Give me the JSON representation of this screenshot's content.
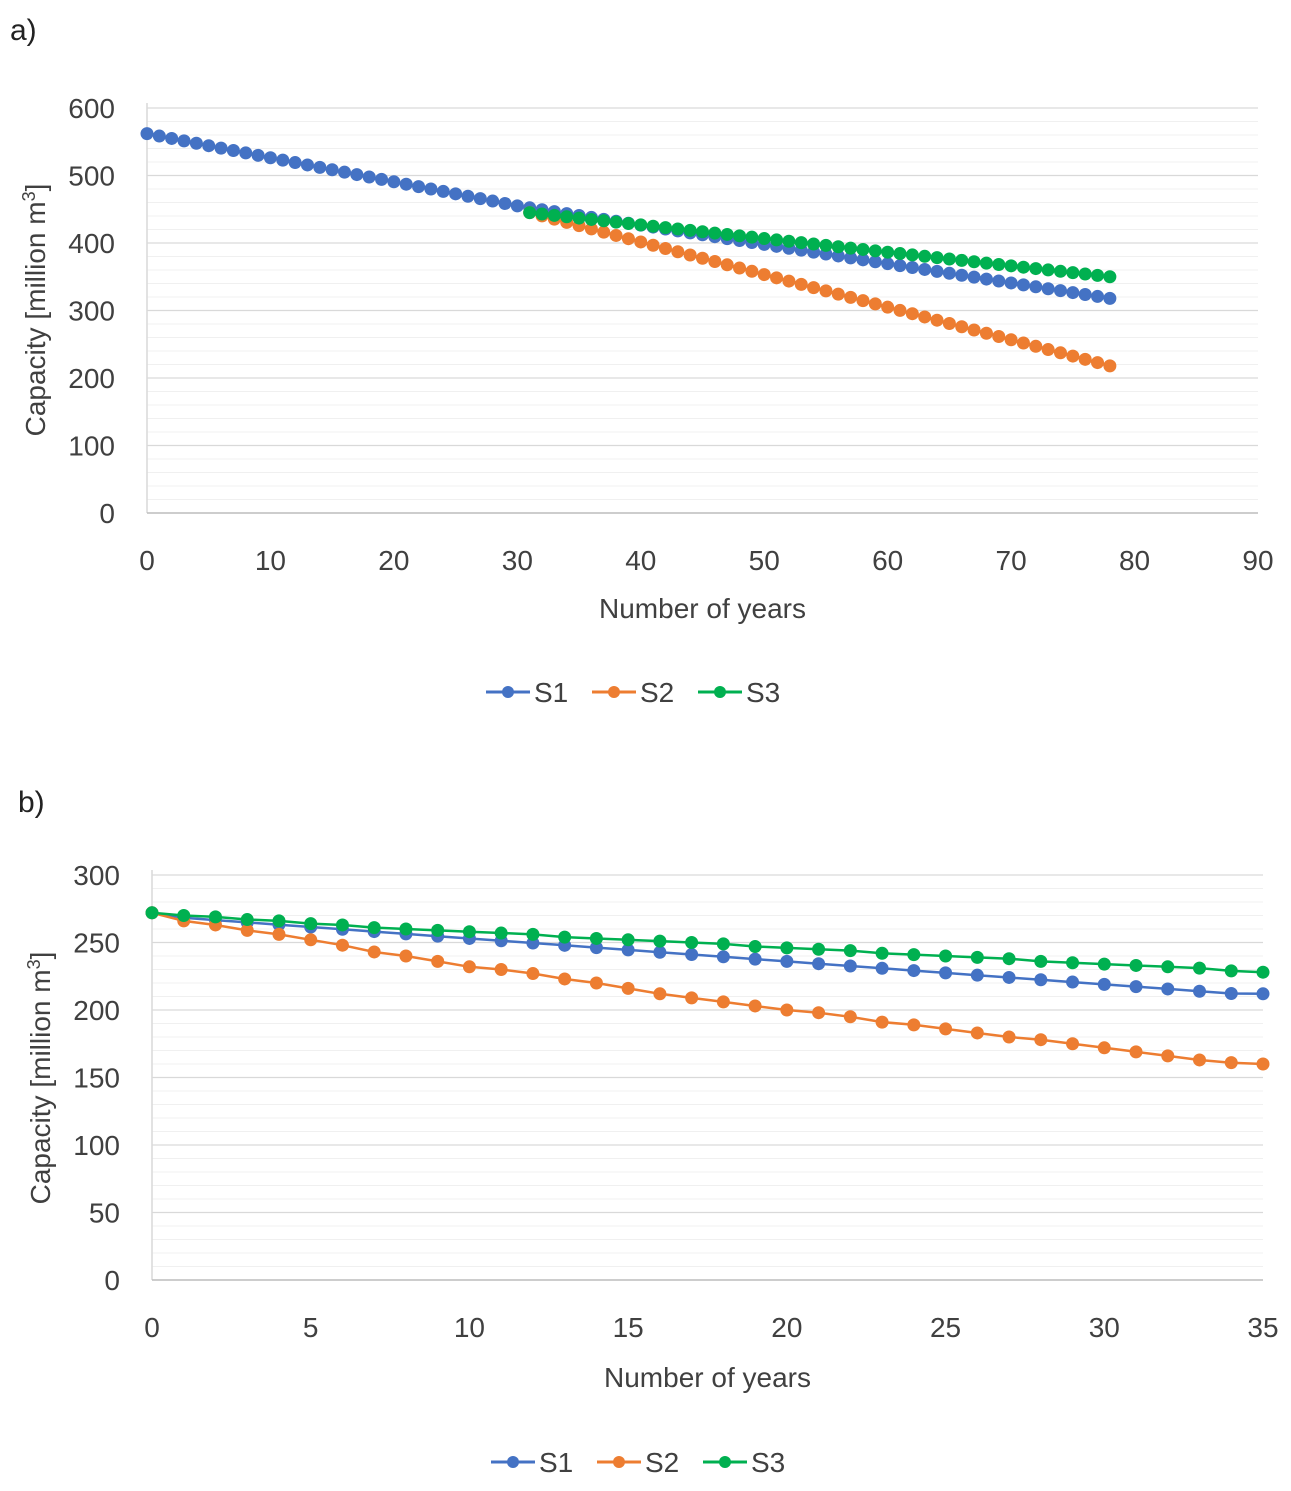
{
  "panels": [
    {
      "label": "a)"
    },
    {
      "label": "b)"
    }
  ],
  "colors": {
    "S1": "#4472C4",
    "S2": "#ED7D31",
    "S3": "#00B050",
    "grid_major": "#d9d9d9",
    "grid_minor": "#f0f0f0"
  },
  "chart_data": [
    {
      "type": "line",
      "title": "",
      "xlabel": "Number of years",
      "ylabel": "Capacity [million m",
      "ylabel_sup": "3",
      "ylabel_end": "]",
      "xlim": [
        0,
        90
      ],
      "ylim": [
        0,
        600
      ],
      "xticks": [
        0,
        10,
        20,
        30,
        40,
        50,
        60,
        70,
        80,
        90
      ],
      "yticks": [
        0,
        100,
        200,
        300,
        400,
        500,
        600
      ],
      "grid": true,
      "legend": "bottom-center",
      "series": [
        {
          "name": "S1",
          "x_start": 0,
          "x_end": 78,
          "y_start": 562,
          "y_end": 318,
          "breakpoint": {
            "x": 30,
            "y": 455
          }
        },
        {
          "name": "S2",
          "x_start": 31,
          "x_end": 78,
          "y_start": 445,
          "y_end": 218
        },
        {
          "name": "S3",
          "x_start": 31,
          "x_end": 78,
          "y_start": 445,
          "y_end": 350
        }
      ]
    },
    {
      "type": "line",
      "title": "",
      "xlabel": "Number of years",
      "ylabel": "Capacity [million m",
      "ylabel_sup": "3",
      "ylabel_end": "]",
      "xlim": [
        0,
        35
      ],
      "ylim": [
        0,
        300
      ],
      "xticks": [
        0,
        5,
        10,
        15,
        20,
        25,
        30,
        35
      ],
      "yticks": [
        0,
        50,
        100,
        150,
        200,
        250,
        300
      ],
      "grid": true,
      "legend": "bottom-center",
      "series": [
        {
          "name": "S1",
          "x": [
            0,
            1,
            2,
            3,
            4,
            5,
            6,
            7,
            8,
            9,
            10,
            11,
            12,
            13,
            14,
            15,
            16,
            17,
            18,
            19,
            20,
            21,
            22,
            23,
            24,
            25,
            26,
            27,
            28,
            29,
            30,
            31,
            32,
            33,
            34,
            35
          ],
          "y": [
            272,
            268.3,
            266.6,
            264.9,
            263.2,
            261.5,
            259.8,
            258.1,
            256.4,
            254.7,
            253,
            251.3,
            249.6,
            247.9,
            246.2,
            244.5,
            242.8,
            241.1,
            239.4,
            237.7,
            236,
            234.3,
            232.6,
            230.9,
            229.2,
            227.5,
            225.8,
            224.1,
            222.4,
            220.7,
            219,
            217.3,
            215.6,
            213.9,
            212.2,
            212
          ]
        },
        {
          "name": "S2",
          "x": [
            0,
            1,
            2,
            3,
            4,
            5,
            6,
            7,
            8,
            9,
            10,
            11,
            12,
            13,
            14,
            15,
            16,
            17,
            18,
            19,
            20,
            21,
            22,
            23,
            24,
            25,
            26,
            27,
            28,
            29,
            30,
            31,
            32,
            33,
            34,
            35
          ],
          "y": [
            272,
            266,
            263,
            259,
            256,
            252,
            248,
            243,
            240,
            236,
            232,
            230,
            227,
            223,
            220,
            216,
            212,
            209,
            206,
            203,
            200,
            198,
            195,
            191,
            189,
            186,
            183,
            180,
            178,
            175,
            172,
            169,
            166,
            163,
            161,
            160
          ]
        },
        {
          "name": "S3",
          "x": [
            0,
            1,
            2,
            3,
            4,
            5,
            6,
            7,
            8,
            9,
            10,
            11,
            12,
            13,
            14,
            15,
            16,
            17,
            18,
            19,
            20,
            21,
            22,
            23,
            24,
            25,
            26,
            27,
            28,
            29,
            30,
            31,
            32,
            33,
            34,
            35
          ],
          "y": [
            272,
            270,
            269,
            267,
            266,
            264,
            263,
            261,
            260,
            259,
            258,
            257,
            256,
            254,
            253,
            252,
            251,
            250,
            249,
            247,
            246,
            245,
            244,
            242,
            241,
            240,
            239,
            238,
            236,
            235,
            234,
            233,
            232,
            231,
            229,
            228
          ]
        }
      ]
    }
  ]
}
